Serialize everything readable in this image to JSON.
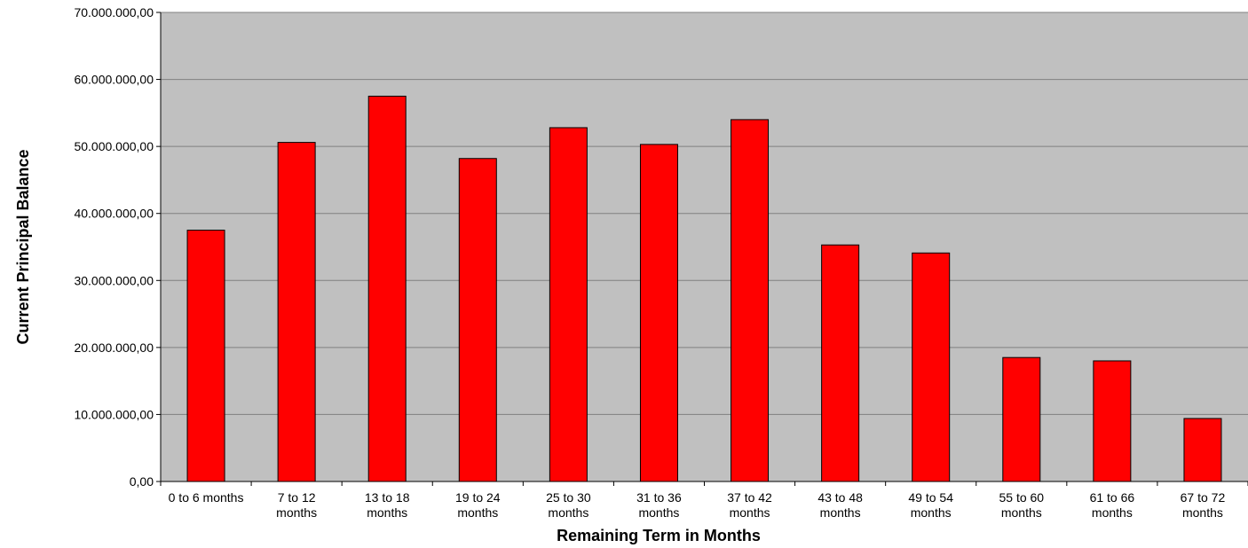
{
  "chart_data": {
    "type": "bar",
    "title": "",
    "xlabel": "Remaining Term in Months",
    "ylabel": "Current Principal Balance",
    "categories": [
      [
        "0 to 6 months"
      ],
      [
        "7 to 12",
        "months"
      ],
      [
        "13 to 18",
        "months"
      ],
      [
        "19 to 24",
        "months"
      ],
      [
        "25 to 30",
        "months"
      ],
      [
        "31 to 36",
        "months"
      ],
      [
        "37 to 42",
        "months"
      ],
      [
        "43 to 48",
        "months"
      ],
      [
        "49 to 54",
        "months"
      ],
      [
        "55 to 60",
        "months"
      ],
      [
        "61 to 66",
        "months"
      ],
      [
        "67 to 72",
        "months"
      ]
    ],
    "values": [
      37500000,
      50600000,
      57500000,
      48200000,
      52800000,
      50300000,
      54000000,
      35300000,
      34100000,
      18500000,
      18000000,
      9400000
    ],
    "ylim": [
      0,
      70000000
    ],
    "yticks": [
      0,
      10000000,
      20000000,
      30000000,
      40000000,
      50000000,
      60000000,
      70000000
    ],
    "ytick_labels": [
      "0,00",
      "10.000.000,00",
      "20.000.000,00",
      "30.000.000,00",
      "40.000.000,00",
      "50.000.000,00",
      "60.000.000,00",
      "70.000.000,00"
    ],
    "grid": true,
    "legend": "none",
    "colors": {
      "bar_fill": "#ff0000",
      "bar_stroke": "#000000",
      "plot_background": "#c0c0c0",
      "gridline": "#808080"
    }
  }
}
